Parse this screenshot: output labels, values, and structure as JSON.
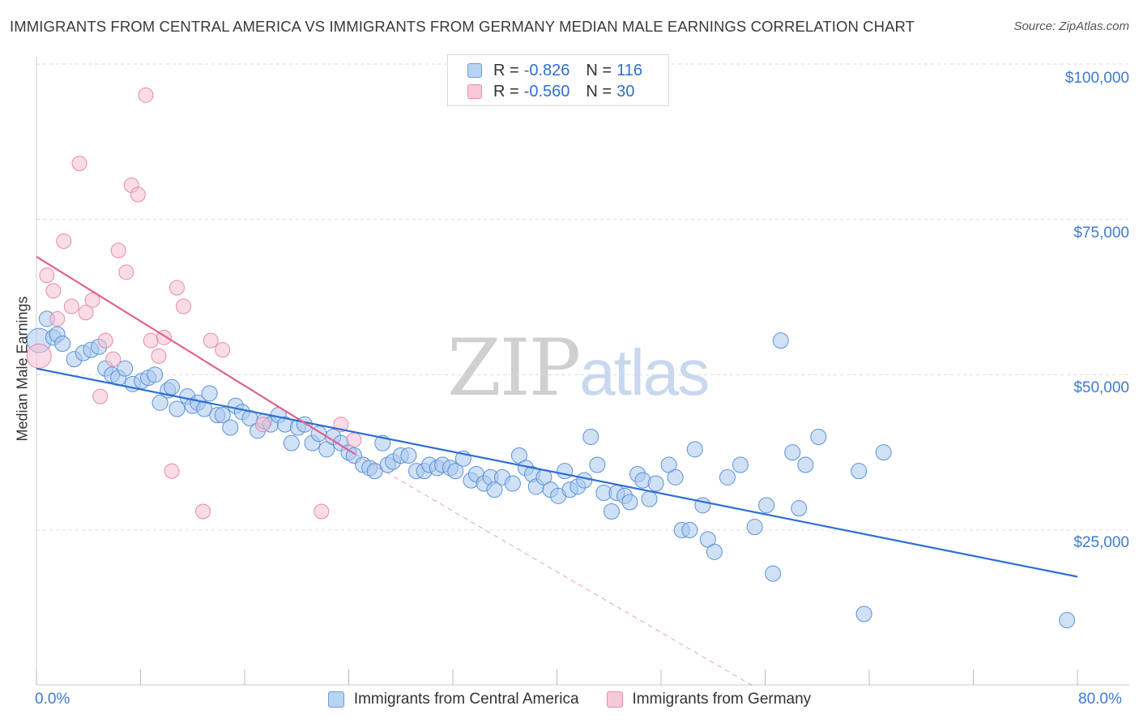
{
  "title": "IMMIGRANTS FROM CENTRAL AMERICA VS IMMIGRANTS FROM GERMANY MEDIAN MALE EARNINGS CORRELATION CHART",
  "source": "Source: ZipAtlas.com",
  "watermark": {
    "zip": "ZIP",
    "atlas": "atlas"
  },
  "legend_top": [
    {
      "r_label": "R =",
      "r_value": "-0.826",
      "n_label": "N =",
      "n_value": "116"
    },
    {
      "r_label": "R =",
      "r_value": "-0.560",
      "n_label": "N =",
      "n_value": "30"
    }
  ],
  "colors": {
    "blue_fill": "#a9c8ef",
    "blue_stroke": "#5b92d9",
    "blue_line": "#2d6fd2",
    "pink_fill": "#f5bfd1",
    "pink_stroke": "#e58aa9",
    "pink_line": "#e0628e",
    "grid": "#dcdcdc",
    "tick_text": "#3f7bd0"
  },
  "chart_data": {
    "type": "scatter",
    "title": "IMMIGRANTS FROM CENTRAL AMERICA VS IMMIGRANTS FROM GERMANY MEDIAN MALE EARNINGS CORRELATION CHART",
    "xlabel": "",
    "ylabel": "Median Male Earnings",
    "xlim": [
      0,
      80
    ],
    "ylim": [
      0,
      105000
    ],
    "x_tick_labels": [
      "0.0%",
      "80.0%"
    ],
    "y_ticks": [
      {
        "value": 25000,
        "label": "$25,000"
      },
      {
        "value": 50000,
        "label": "$50,000"
      },
      {
        "value": 75000,
        "label": "$75,000"
      },
      {
        "value": 100000,
        "label": "$100,000"
      }
    ],
    "grid": true,
    "legend_position": "bottom-center",
    "series": [
      {
        "name": "Immigrants from Central America",
        "color": "#5b92d9",
        "trend": {
          "x1": 0,
          "y1": 51000,
          "x2": 80,
          "y2": 17500,
          "style": "solid"
        },
        "points": [
          [
            0.2,
            55500
          ],
          [
            0.8,
            59000
          ],
          [
            1.3,
            56000
          ],
          [
            1.6,
            56500
          ],
          [
            2.0,
            55000
          ],
          [
            2.9,
            52500
          ],
          [
            3.6,
            53500
          ],
          [
            4.2,
            54000
          ],
          [
            4.8,
            54500
          ],
          [
            5.3,
            51000
          ],
          [
            5.8,
            50000
          ],
          [
            6.3,
            49500
          ],
          [
            6.8,
            51000
          ],
          [
            7.4,
            48500
          ],
          [
            8.1,
            49000
          ],
          [
            8.6,
            49500
          ],
          [
            9.1,
            50000
          ],
          [
            9.5,
            45500
          ],
          [
            10.1,
            47500
          ],
          [
            10.4,
            48000
          ],
          [
            10.8,
            44500
          ],
          [
            11.6,
            46500
          ],
          [
            12.0,
            45000
          ],
          [
            12.4,
            45500
          ],
          [
            12.9,
            44500
          ],
          [
            13.3,
            47000
          ],
          [
            13.9,
            43500
          ],
          [
            14.3,
            43500
          ],
          [
            14.9,
            41500
          ],
          [
            15.3,
            45000
          ],
          [
            15.8,
            44000
          ],
          [
            16.4,
            43000
          ],
          [
            17.0,
            41000
          ],
          [
            17.5,
            42500
          ],
          [
            18.0,
            42000
          ],
          [
            18.6,
            43500
          ],
          [
            19.1,
            42000
          ],
          [
            19.6,
            39000
          ],
          [
            20.1,
            41500
          ],
          [
            20.6,
            42000
          ],
          [
            21.2,
            39000
          ],
          [
            21.7,
            40500
          ],
          [
            22.3,
            38000
          ],
          [
            22.8,
            40000
          ],
          [
            23.4,
            39000
          ],
          [
            24.0,
            37500
          ],
          [
            24.4,
            37000
          ],
          [
            25.1,
            35500
          ],
          [
            25.6,
            35000
          ],
          [
            26.0,
            34500
          ],
          [
            26.6,
            39000
          ],
          [
            27.0,
            35500
          ],
          [
            27.4,
            36000
          ],
          [
            28.0,
            37000
          ],
          [
            28.6,
            37000
          ],
          [
            29.2,
            34500
          ],
          [
            29.8,
            34500
          ],
          [
            30.2,
            35500
          ],
          [
            30.8,
            35000
          ],
          [
            31.2,
            35500
          ],
          [
            31.8,
            35000
          ],
          [
            32.2,
            34500
          ],
          [
            32.8,
            36500
          ],
          [
            33.4,
            33000
          ],
          [
            33.8,
            34000
          ],
          [
            34.4,
            32500
          ],
          [
            34.9,
            33500
          ],
          [
            35.2,
            31500
          ],
          [
            35.8,
            33500
          ],
          [
            36.6,
            32500
          ],
          [
            37.1,
            37000
          ],
          [
            37.6,
            35000
          ],
          [
            38.1,
            34000
          ],
          [
            38.4,
            32000
          ],
          [
            39.0,
            33500
          ],
          [
            39.5,
            31500
          ],
          [
            40.1,
            30500
          ],
          [
            40.6,
            34500
          ],
          [
            41.0,
            31500
          ],
          [
            41.6,
            32000
          ],
          [
            42.1,
            33000
          ],
          [
            42.6,
            40000
          ],
          [
            43.1,
            35500
          ],
          [
            43.6,
            31000
          ],
          [
            44.2,
            28000
          ],
          [
            44.6,
            31000
          ],
          [
            45.2,
            30500
          ],
          [
            45.6,
            29500
          ],
          [
            46.2,
            34000
          ],
          [
            46.6,
            33000
          ],
          [
            47.1,
            30000
          ],
          [
            47.6,
            32500
          ],
          [
            48.6,
            35500
          ],
          [
            49.1,
            33500
          ],
          [
            49.6,
            25000
          ],
          [
            50.2,
            25000
          ],
          [
            50.6,
            38000
          ],
          [
            51.2,
            29000
          ],
          [
            51.6,
            23500
          ],
          [
            52.1,
            21500
          ],
          [
            53.1,
            33500
          ],
          [
            54.1,
            35500
          ],
          [
            55.2,
            25500
          ],
          [
            56.1,
            29000
          ],
          [
            56.6,
            18000
          ],
          [
            57.2,
            55500
          ],
          [
            58.1,
            37500
          ],
          [
            58.6,
            28500
          ],
          [
            59.1,
            35500
          ],
          [
            60.1,
            40000
          ],
          [
            63.2,
            34500
          ],
          [
            63.6,
            11500
          ],
          [
            65.1,
            37500
          ],
          [
            79.2,
            10500
          ]
        ]
      },
      {
        "name": "Immigrants from Germany",
        "color": "#e58aa9",
        "trend": {
          "x1": 0,
          "y1": 69000,
          "x2": 24.5,
          "y2": 37200,
          "style": "solid",
          "extension": {
            "x2": 55,
            "y2": 0,
            "style": "dashed"
          }
        },
        "points": [
          [
            0.2,
            53000
          ],
          [
            0.8,
            66000
          ],
          [
            1.3,
            63500
          ],
          [
            1.6,
            59000
          ],
          [
            2.1,
            71500
          ],
          [
            2.7,
            61000
          ],
          [
            3.3,
            84000
          ],
          [
            3.8,
            60000
          ],
          [
            4.3,
            62000
          ],
          [
            4.9,
            46500
          ],
          [
            5.3,
            55500
          ],
          [
            5.9,
            52500
          ],
          [
            6.3,
            70000
          ],
          [
            6.9,
            66500
          ],
          [
            7.3,
            80500
          ],
          [
            7.8,
            79000
          ],
          [
            8.4,
            95000
          ],
          [
            8.8,
            55500
          ],
          [
            9.4,
            53000
          ],
          [
            9.8,
            56000
          ],
          [
            10.4,
            34500
          ],
          [
            10.8,
            64000
          ],
          [
            11.3,
            61000
          ],
          [
            12.8,
            28000
          ],
          [
            13.4,
            55500
          ],
          [
            14.3,
            54000
          ],
          [
            17.4,
            42000
          ],
          [
            21.9,
            28000
          ],
          [
            23.4,
            42000
          ],
          [
            24.4,
            39500
          ]
        ]
      }
    ]
  },
  "legend_bottom": [
    {
      "label": "Immigrants from Central America"
    },
    {
      "label": "Immigrants from Germany"
    }
  ]
}
